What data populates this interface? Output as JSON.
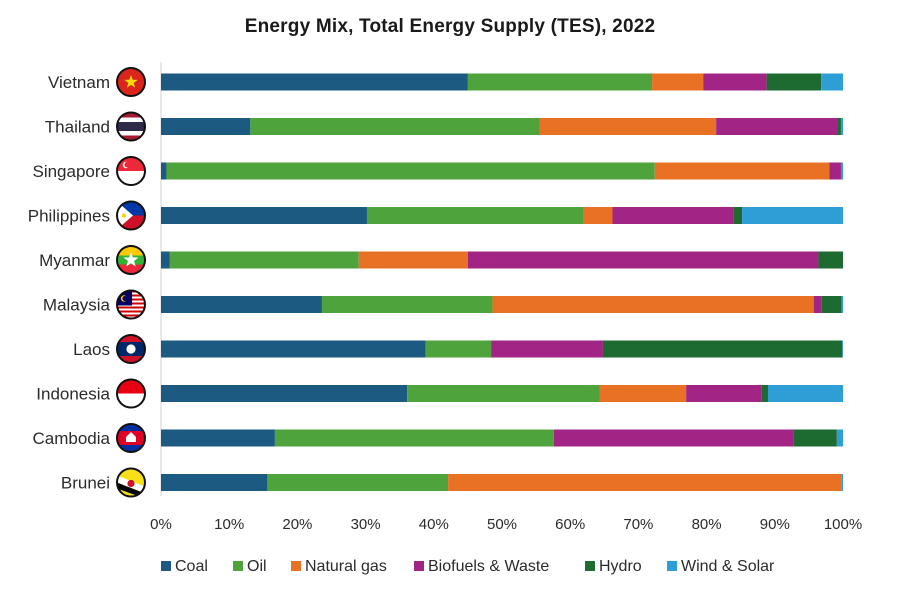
{
  "chart_data": {
    "type": "bar",
    "orientation": "horizontal",
    "stacked": true,
    "title": "Energy Mix, Total Energy Supply (TES), 2022",
    "xlabel": "",
    "ylabel": "",
    "xlim": [
      0,
      100
    ],
    "x_ticks": [
      "0%",
      "10%",
      "20%",
      "30%",
      "40%",
      "50%",
      "60%",
      "70%",
      "80%",
      "90%",
      "100%"
    ],
    "legend_position": "bottom",
    "categories": [
      "Vietnam",
      "Thailand",
      "Singapore",
      "Philippines",
      "Myanmar",
      "Malaysia",
      "Laos",
      "Indonesia",
      "Cambodia",
      "Brunei"
    ],
    "series": [
      {
        "name": "Coal",
        "color": "#1c5a82",
        "values": [
          45.0,
          13.1,
          0.8,
          30.2,
          1.3,
          23.6,
          38.8,
          36.1,
          16.7,
          15.6
        ]
      },
      {
        "name": "Oil",
        "color": "#4ea33c",
        "values": [
          27.0,
          42.4,
          71.6,
          31.8,
          27.7,
          25.0,
          9.6,
          28.2,
          40.9,
          26.5
        ]
      },
      {
        "name": "Natural gas",
        "color": "#e97124",
        "values": [
          7.5,
          25.9,
          25.6,
          4.2,
          16.0,
          47.1,
          0.0,
          12.7,
          0.0,
          57.7
        ]
      },
      {
        "name": "Biofuels & Waste",
        "color": "#a22484",
        "values": [
          9.3,
          17.8,
          1.7,
          17.8,
          51.4,
          1.2,
          16.4,
          11.1,
          35.2,
          0.0
        ]
      },
      {
        "name": "Hydro",
        "color": "#1e6b32",
        "values": [
          8.0,
          0.5,
          0.0,
          1.2,
          3.6,
          2.9,
          35.1,
          0.9,
          6.3,
          0.0
        ]
      },
      {
        "name": "Wind & Solar",
        "color": "#2f9ed6",
        "values": [
          3.2,
          0.3,
          0.3,
          14.8,
          0.0,
          0.2,
          0.1,
          11.0,
          0.9,
          0.2
        ]
      }
    ],
    "flag_icons": [
      {
        "name": "vietnam-flag-icon",
        "bg": "#da251d",
        "accent": "#ffdd00",
        "kind": "star"
      },
      {
        "name": "thailand-flag-icon",
        "bg": "#ffffff",
        "accent": "#2d2a4a",
        "kind": "stripes-th"
      },
      {
        "name": "singapore-flag-icon",
        "bg": "#ffffff",
        "accent": "#ed2939",
        "kind": "top-half"
      },
      {
        "name": "philippines-flag-icon",
        "bg": "#0038a8",
        "accent": "#ce1126",
        "kind": "triangle-ph"
      },
      {
        "name": "myanmar-flag-icon",
        "bg": "#34b233",
        "accent": "#fecb00",
        "kind": "tricolor-mm"
      },
      {
        "name": "malaysia-flag-icon",
        "bg": "#ffffff",
        "accent": "#cc0001",
        "kind": "stripes-my"
      },
      {
        "name": "laos-flag-icon",
        "bg": "#002868",
        "accent": "#ce1126",
        "kind": "band-la"
      },
      {
        "name": "indonesia-flag-icon",
        "bg": "#ffffff",
        "accent": "#e70011",
        "kind": "top-half"
      },
      {
        "name": "cambodia-flag-icon",
        "bg": "#032ea1",
        "accent": "#e00025",
        "kind": "band-kh"
      },
      {
        "name": "brunei-flag-icon",
        "bg": "#f7e017",
        "accent": "#000000",
        "kind": "diag-bn"
      }
    ]
  }
}
